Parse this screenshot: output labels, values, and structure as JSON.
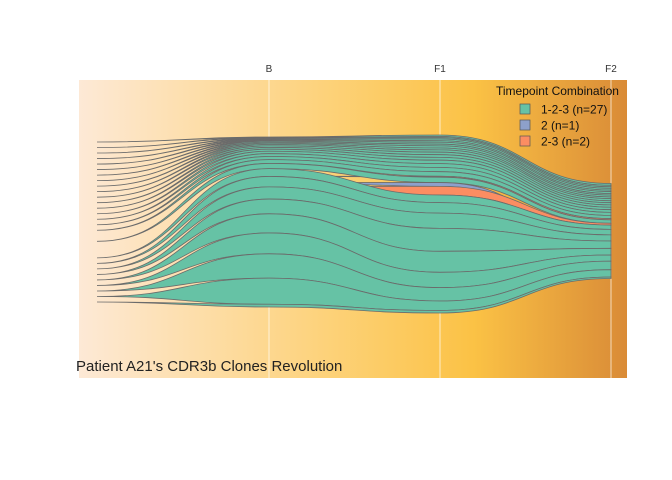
{
  "chart_data": {
    "type": "area",
    "title": "Patient A21's CDR3b Clones Revolution",
    "timepoints": [
      "B",
      "F1",
      "F2"
    ],
    "background_gradient": [
      "#fde9d6",
      "#fdd27a",
      "#fbc245",
      "#d98b37"
    ],
    "legend": {
      "title": "Timepoint Combination",
      "entries": [
        {
          "key": "1-2-3",
          "label": "1-2-3 (n=27)",
          "color": "#66c2a5"
        },
        {
          "key": "2",
          "label": "2 (n=1)",
          "color": "#8da0cb"
        },
        {
          "key": "2-3",
          "label": "2-3 (n=2)",
          "color": "#fc8d62"
        }
      ]
    },
    "streams": [
      {
        "group": "1-2-3",
        "proportions": [
          0.003,
          0.008,
          0.015
        ]
      },
      {
        "group": "1-2-3",
        "proportions": [
          0.003,
          0.006,
          0.012
        ]
      },
      {
        "group": "1-2-3",
        "proportions": [
          0.004,
          0.007,
          0.013
        ]
      },
      {
        "group": "1-2-3",
        "proportions": [
          0.004,
          0.009,
          0.014
        ]
      },
      {
        "group": "1-2-3",
        "proportions": [
          0.005,
          0.008,
          0.012
        ]
      },
      {
        "group": "1-2-3",
        "proportions": [
          0.005,
          0.01,
          0.016
        ]
      },
      {
        "group": "1-2-3",
        "proportions": [
          0.006,
          0.009,
          0.013
        ]
      },
      {
        "group": "1-2-3",
        "proportions": [
          0.006,
          0.011,
          0.015
        ]
      },
      {
        "group": "1-2-3",
        "proportions": [
          0.007,
          0.01,
          0.014
        ]
      },
      {
        "group": "1-2-3",
        "proportions": [
          0.008,
          0.012,
          0.017
        ]
      },
      {
        "group": "1-2-3",
        "proportions": [
          0.009,
          0.013,
          0.016
        ]
      },
      {
        "group": "1-2-3",
        "proportions": [
          0.01,
          0.014,
          0.018
        ]
      },
      {
        "group": "1-2-3",
        "proportions": [
          0.012,
          0.015,
          0.019
        ]
      },
      {
        "group": "1-2-3",
        "proportions": [
          0.014,
          0.018,
          0.02
        ]
      },
      {
        "group": "1-2-3",
        "proportions": [
          0.016,
          0.02,
          0.022
        ]
      },
      {
        "group": "1-2-3",
        "proportions": [
          0.018,
          0.022,
          0.025
        ]
      },
      {
        "group": "1-2-3",
        "proportions": [
          0.022,
          0.024,
          0.026
        ]
      },
      {
        "group": "2-3",
        "proportions": [
          0.0,
          0.005,
          0.01
        ]
      },
      {
        "group": "1-2-3",
        "proportions": [
          0.03,
          0.028,
          0.028
        ]
      },
      {
        "group": "2",
        "proportions": [
          0.0,
          0.02,
          0.0
        ]
      },
      {
        "group": "2-3",
        "proportions": [
          0.0,
          0.045,
          0.015
        ]
      },
      {
        "group": "1-2-3",
        "proportions": [
          0.045,
          0.04,
          0.035
        ]
      },
      {
        "group": "1-2-3",
        "proportions": [
          0.06,
          0.055,
          0.045
        ]
      },
      {
        "group": "1-2-3",
        "proportions": [
          0.07,
          0.08,
          0.05
        ]
      },
      {
        "group": "1-2-3",
        "proportions": [
          0.085,
          0.12,
          0.06
        ]
      },
      {
        "group": "1-2-3",
        "proportions": [
          0.11,
          0.11,
          0.055
        ]
      },
      {
        "group": "1-2-3",
        "proportions": [
          0.12,
          0.08,
          0.05
        ]
      },
      {
        "group": "1-2-3",
        "proportions": [
          0.14,
          0.07,
          0.07
        ]
      },
      {
        "group": "1-2-3",
        "proportions": [
          0.15,
          0.05,
          0.06
        ]
      },
      {
        "group": "1-2-3",
        "proportions": [
          0.016,
          0.013,
          0.012
        ]
      }
    ]
  }
}
